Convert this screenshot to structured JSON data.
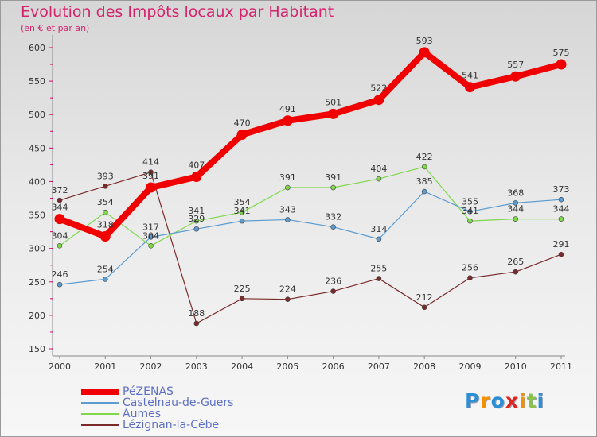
{
  "header": {
    "title": "Evolution des Impôts locaux par Habitant",
    "subtitle": "(en € et par an)"
  },
  "brand": {
    "letters": [
      "P",
      "r",
      "o",
      "x",
      "i",
      "t",
      "i"
    ],
    "colors": [
      "#2b8fd6",
      "#f39200",
      "#2b8fd6",
      "#e2231a",
      "#f39200",
      "#8bc34a",
      "#2b8fd6"
    ]
  },
  "chart_data": {
    "type": "line",
    "categories": [
      "2000",
      "2001",
      "2002",
      "2003",
      "2004",
      "2005",
      "2006",
      "2007",
      "2008",
      "2009",
      "2010",
      "2011"
    ],
    "ylim": [
      150,
      600
    ],
    "yticks": [
      150,
      200,
      250,
      300,
      350,
      400,
      450,
      500,
      550,
      600
    ],
    "grid": false,
    "legend_position": "bottom-left",
    "series": [
      {
        "name": "Lézignan-la-Cèbe",
        "color": "#7b2a2a",
        "values": [
          372,
          393,
          414,
          188,
          225,
          224,
          236,
          255,
          212,
          256,
          265,
          291
        ],
        "labels": [
          "372",
          "393",
          "414",
          "188",
          "225",
          "224",
          "236",
          "255",
          "212",
          "256",
          "265",
          "291"
        ]
      },
      {
        "name": "Aumes",
        "color": "#7ed84a",
        "values": [
          304,
          354,
          304,
          341,
          354,
          391,
          391,
          404,
          422,
          341,
          344,
          344
        ],
        "labels": [
          "304",
          "354",
          "304",
          "341",
          "354",
          "391",
          "391",
          "404",
          "422",
          "341",
          "344",
          "344"
        ]
      },
      {
        "name": "Castelnau-de-Guers",
        "color": "#5b9bd0",
        "values": [
          246,
          254,
          317,
          329,
          341,
          343,
          332,
          314,
          385,
          355,
          368,
          373
        ],
        "labels": [
          "246",
          "254",
          "317",
          "329",
          "341",
          "343",
          "332",
          "314",
          "385",
          "355",
          "368",
          "373"
        ]
      },
      {
        "name": "PéZENAS",
        "color": "#f00000",
        "values": [
          344,
          318,
          391,
          407,
          470,
          491,
          501,
          522,
          593,
          541,
          557,
          575
        ],
        "labels": [
          "344",
          "318",
          "391",
          "407",
          "470",
          "491",
          "501",
          "522",
          "593",
          "541",
          "557",
          "575"
        ]
      }
    ],
    "legend_order": [
      "PéZENAS",
      "Castelnau-de-Guers",
      "Aumes",
      "Lézignan-la-Cèbe"
    ]
  }
}
